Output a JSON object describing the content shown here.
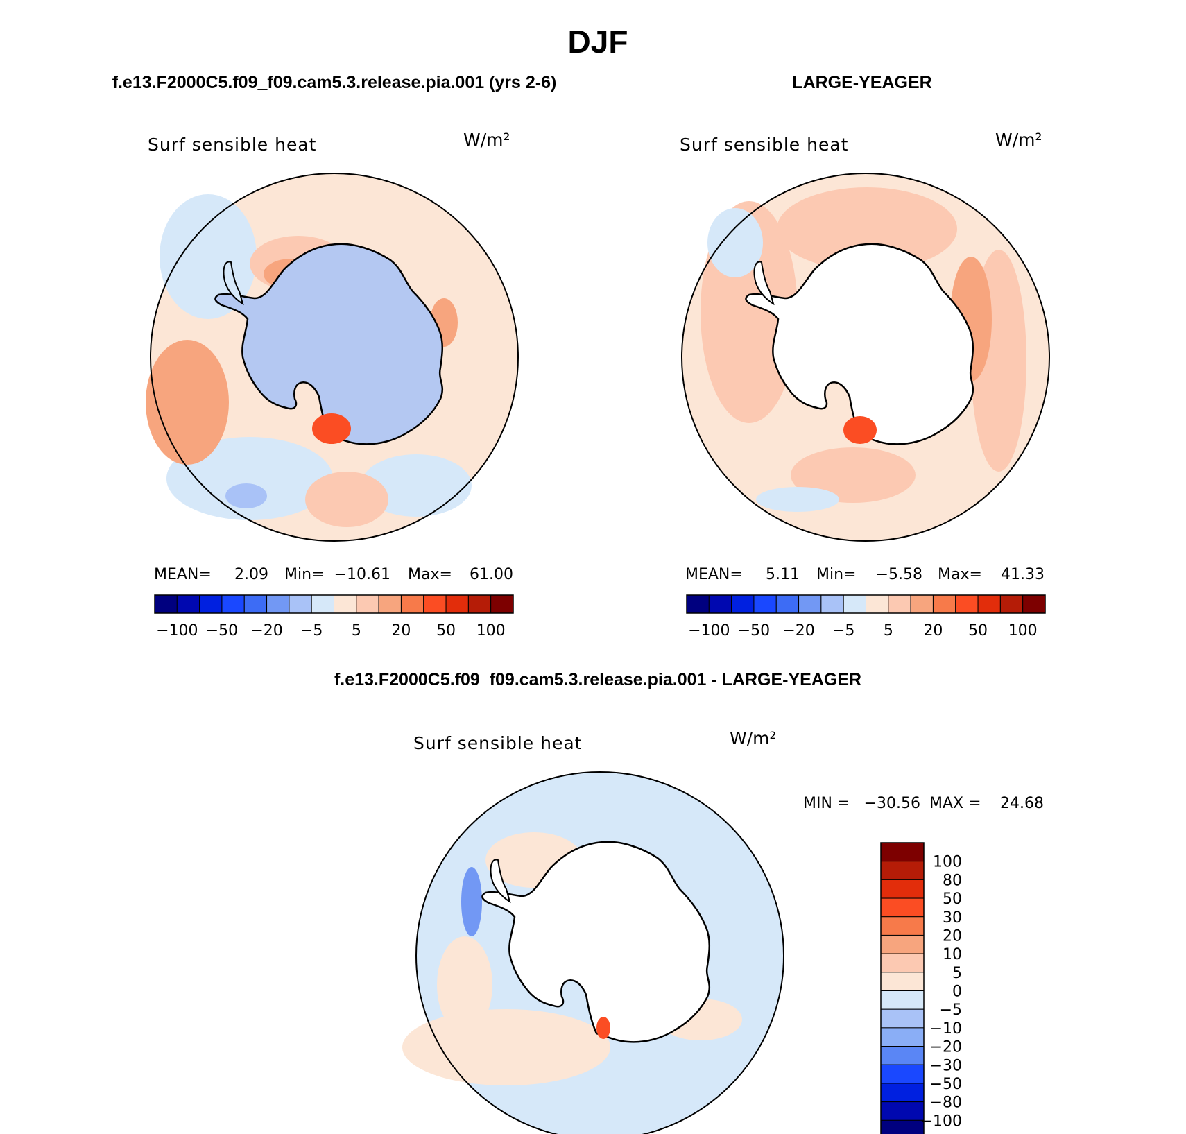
{
  "page": {
    "title": "DJF",
    "panel_left_title": "f.e13.F2000C5.f09_f09.cam5.3.release.pia.001 (yrs 2-6)",
    "panel_right_title": "LARGE-YEAGER",
    "panel_diff_title": "f.e13.F2000C5.f09_f09.cam5.3.release.pia.001 - LARGE-YEAGER"
  },
  "chart_data": [
    {
      "type": "heatmap",
      "projection": "south polar stereographic",
      "variable": "Surf sensible heat",
      "units": "W/m²",
      "stats": {
        "mean_label": "MEAN=",
        "mean": "2.09",
        "min_label": "Min=",
        "min": "−10.61",
        "max_label": "Max=",
        "max": "61.00"
      },
      "colorbar": {
        "orientation": "horizontal",
        "tick_labels": [
          "−100",
          "−50",
          "−20",
          "−5",
          "5",
          "20",
          "50",
          "100"
        ],
        "colors": [
          "#00007f",
          "#0008b0",
          "#0020e0",
          "#1a48ff",
          "#3d6cf5",
          "#7298f4",
          "#a9c2f7",
          "#d6e8f9",
          "#fce6d6",
          "#fcc9b2",
          "#f7a57e",
          "#f77a4a",
          "#fb4d23",
          "#e22d0b",
          "#b51c07",
          "#7d0000"
        ]
      },
      "features": {
        "antarctica_fill": "#b4c8f2"
      }
    },
    {
      "type": "heatmap",
      "projection": "south polar stereographic",
      "variable": "Surf sensible heat",
      "units": "W/m²",
      "stats": {
        "mean_label": "MEAN=",
        "mean": "5.11",
        "min_label": "Min=",
        "min": "−5.58",
        "max_label": "Max=",
        "max": "41.33"
      },
      "colorbar": {
        "orientation": "horizontal",
        "tick_labels": [
          "−100",
          "−50",
          "−20",
          "−5",
          "5",
          "20",
          "50",
          "100"
        ],
        "colors": [
          "#00007f",
          "#0008b0",
          "#0020e0",
          "#1a48ff",
          "#3d6cf5",
          "#7298f4",
          "#a9c2f7",
          "#d6e8f9",
          "#fce6d6",
          "#fcc9b2",
          "#f7a57e",
          "#f77a4a",
          "#fb4d23",
          "#e22d0b",
          "#b51c07",
          "#7d0000"
        ]
      },
      "features": {
        "antarctica_fill": "#ffffff"
      }
    },
    {
      "type": "heatmap",
      "projection": "south polar stereographic",
      "variable": "Surf sensible heat",
      "units": "W/m²",
      "stats": {
        "min_label": "MIN =",
        "min": "−30.56",
        "max_label": "MAX =",
        "max": "24.68"
      },
      "colorbar": {
        "orientation": "vertical",
        "tick_labels": [
          "100",
          "80",
          "50",
          "30",
          "20",
          "10",
          "5",
          "0",
          "−5",
          "−10",
          "−20",
          "−30",
          "−50",
          "−80",
          "−100"
        ],
        "colors": [
          "#7d0000",
          "#b51c07",
          "#e22d0b",
          "#fb4d23",
          "#f77a4a",
          "#f7a57e",
          "#fcc9b2",
          "#fce6d6",
          "#d6e8f9",
          "#a9c2f7",
          "#8aaef6",
          "#5a86f5",
          "#1a48ff",
          "#0020e0",
          "#0008b0",
          "#00007f"
        ]
      },
      "features": {
        "antarctica_fill": "#ffffff"
      }
    }
  ]
}
